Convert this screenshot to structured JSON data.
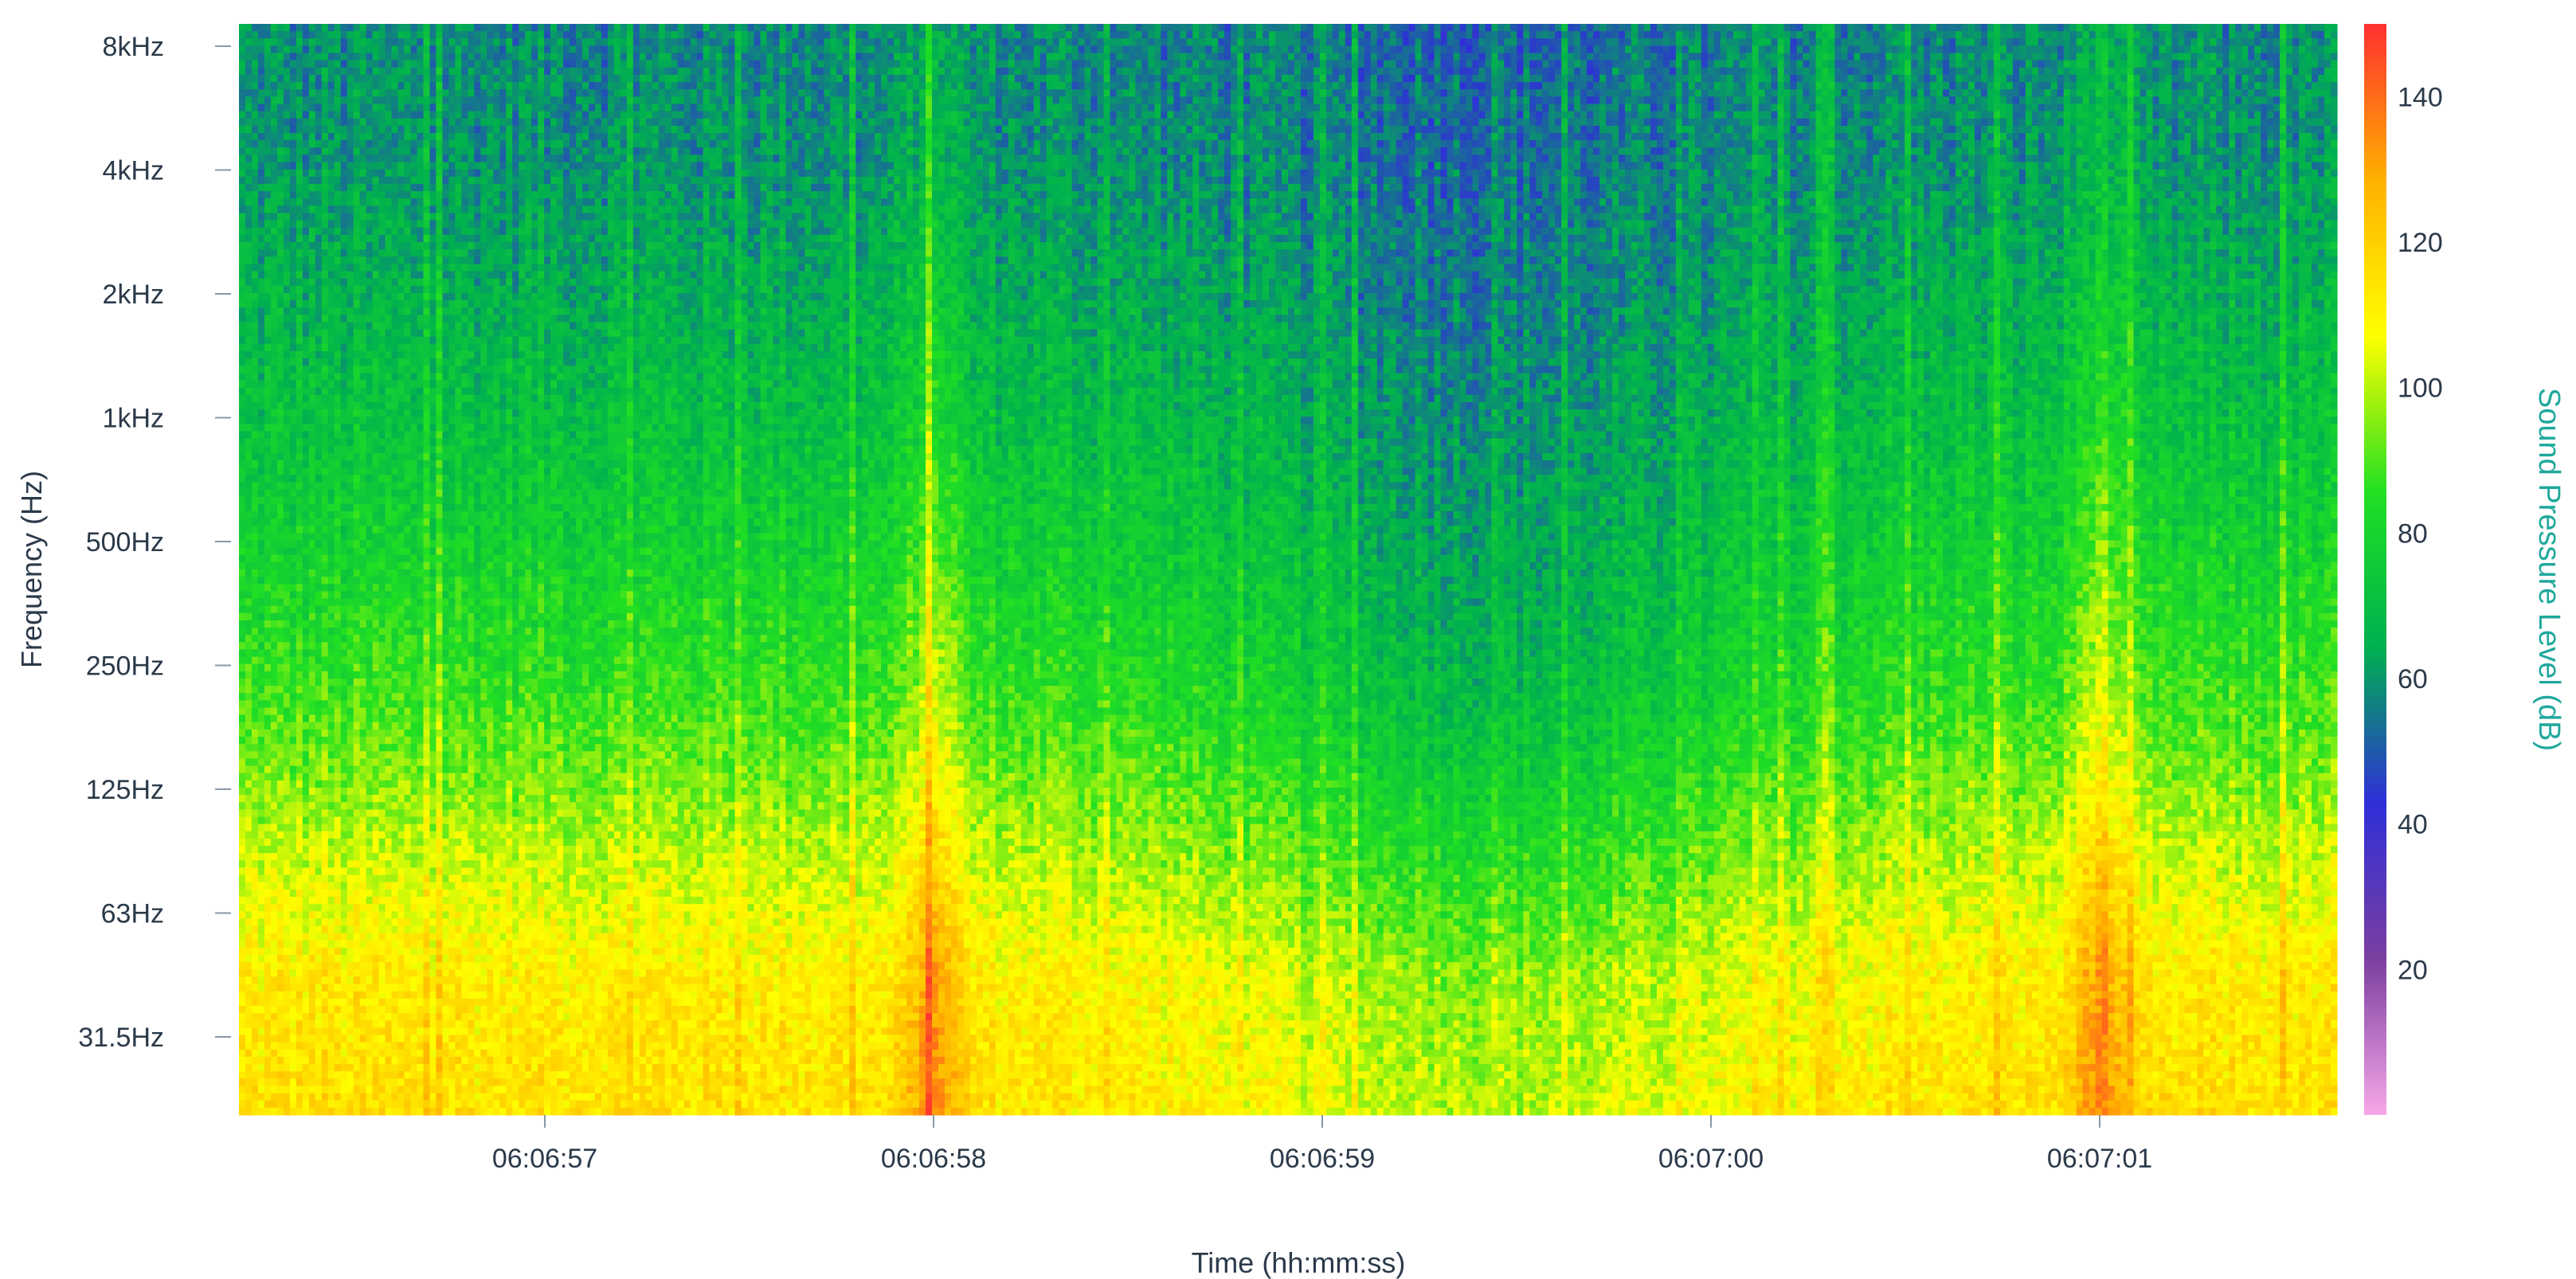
{
  "chart_data": {
    "type": "heatmap",
    "xlabel": "Time (hh:mm:ss)",
    "ylabel": "Frequency (Hz)",
    "x_ticks": [
      "06:06:57",
      "06:06:58",
      "06:06:59",
      "06:07:00",
      "06:07:01"
    ],
    "y_ticks": [
      "8kHz",
      "4kHz",
      "2kHz",
      "1kHz",
      "500Hz",
      "250Hz",
      "125Hz",
      "63Hz",
      "31.5Hz"
    ],
    "colorbar": {
      "title": "Sound Pressure Level (dB)",
      "ticks": [
        140,
        120,
        100,
        80,
        60,
        40,
        20
      ],
      "range": [
        0,
        150
      ],
      "colors": [
        "#f7a8e8",
        "#7b3fa0",
        "#2f2fd8",
        "#00b050",
        "#22e022",
        "#ffff00",
        "#ffb000",
        "#ff3030"
      ]
    },
    "level_profiles": {
      "bands_low_to_high": [
        "31.5Hz",
        "63Hz",
        "125Hz",
        "250Hz",
        "500Hz",
        "1kHz",
        "2kHz",
        "4kHz",
        "8kHz"
      ],
      "typical_dB": [
        115,
        112,
        100,
        88,
        80,
        72,
        66,
        60,
        58
      ],
      "quiet_dB": [
        100,
        96,
        82,
        70,
        64,
        60,
        56,
        54,
        52
      ]
    },
    "events": [
      {
        "time": "06:06:58",
        "peak_dB": 140
      },
      {
        "time": "06:07:01",
        "peak_dB": 140
      }
    ]
  }
}
